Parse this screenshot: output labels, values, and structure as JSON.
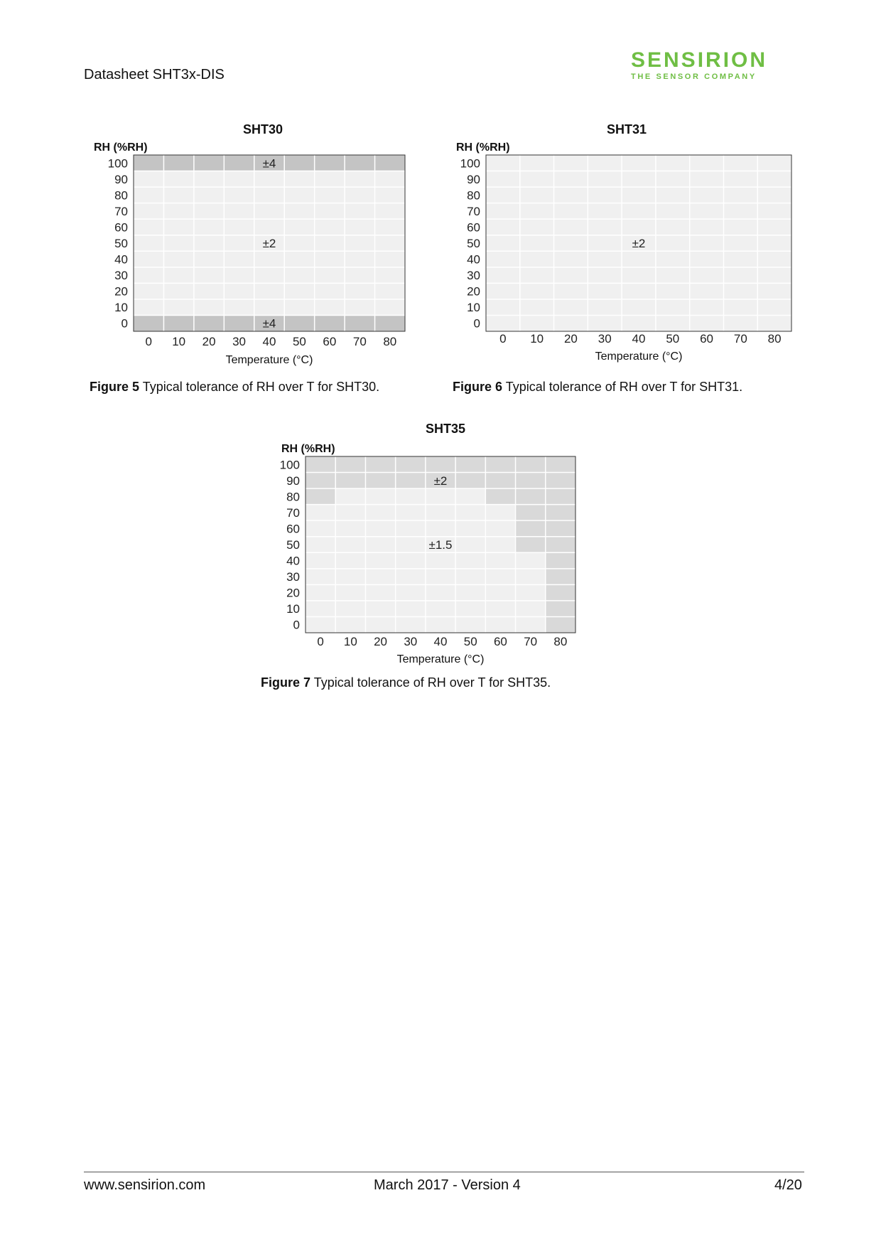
{
  "header": {
    "title": "Datasheet SHT3x-DIS",
    "logo_main": "SENSIRION",
    "logo_sub": "THE SENSOR COMPANY"
  },
  "colors": {
    "brand_green": "#6fbe44",
    "low_fill": "#f0f0f0",
    "mid_fill": "#d9d9d9",
    "high_fill": "#c4c4c4",
    "grid": "#ffffff"
  },
  "figures": [
    {
      "number": "Figure 5",
      "caption": " Typical tolerance of RH over T for SHT30."
    },
    {
      "number": "Figure 6",
      "caption": " Typical tolerance of RH over T for SHT31."
    },
    {
      "number": "Figure 7",
      "caption": " Typical tolerance of RH over T for SHT35."
    }
  ],
  "chart_data": [
    {
      "type": "heatmap",
      "title": "SHT30",
      "ylabel": "RH (%RH)",
      "xlabel": "Temperature (°C)",
      "x_ticks": [
        0,
        10,
        20,
        30,
        40,
        50,
        60,
        70,
        80
      ],
      "y_ticks": [
        100,
        90,
        80,
        70,
        60,
        50,
        40,
        30,
        20,
        10,
        0
      ],
      "xlim": [
        -5,
        85
      ],
      "ylim": [
        -5,
        105
      ],
      "regions": [
        {
          "label": "±2",
          "value": 2,
          "shade": "low",
          "x": [
            -5,
            85
          ],
          "y": [
            5,
            95
          ]
        },
        {
          "label": "±4",
          "value": 4,
          "shade": "high",
          "x": [
            -5,
            85
          ],
          "y": [
            95,
            105
          ]
        },
        {
          "label": "±4",
          "value": 4,
          "shade": "high",
          "x": [
            -5,
            85
          ],
          "y": [
            -5,
            5
          ]
        }
      ],
      "labels": [
        {
          "text": "±4",
          "x": 40,
          "y": 100
        },
        {
          "text": "±2",
          "x": 40,
          "y": 50
        },
        {
          "text": "±4",
          "x": 40,
          "y": 0
        }
      ]
    },
    {
      "type": "heatmap",
      "title": "SHT31",
      "ylabel": "RH (%RH)",
      "xlabel": "Temperature (°C)",
      "x_ticks": [
        0,
        10,
        20,
        30,
        40,
        50,
        60,
        70,
        80
      ],
      "y_ticks": [
        100,
        90,
        80,
        70,
        60,
        50,
        40,
        30,
        20,
        10,
        0
      ],
      "xlim": [
        -5,
        85
      ],
      "ylim": [
        -5,
        105
      ],
      "regions": [
        {
          "label": "±2",
          "value": 2,
          "shade": "low",
          "x": [
            -5,
            85
          ],
          "y": [
            -5,
            105
          ]
        }
      ],
      "labels": [
        {
          "text": "±2",
          "x": 40,
          "y": 50
        }
      ]
    },
    {
      "type": "heatmap",
      "title": "SHT35",
      "ylabel": "RH (%RH)",
      "xlabel": "Temperature (°C)",
      "x_ticks": [
        0,
        10,
        20,
        30,
        40,
        50,
        60,
        70,
        80
      ],
      "y_ticks": [
        100,
        90,
        80,
        70,
        60,
        50,
        40,
        30,
        20,
        10,
        0
      ],
      "xlim": [
        -5,
        85
      ],
      "ylim": [
        -5,
        105
      ],
      "regions": [
        {
          "label": "±1.5",
          "value": 1.5,
          "shade": "low",
          "x": [
            -5,
            85
          ],
          "y": [
            -5,
            105
          ]
        },
        {
          "label": "±2",
          "value": 2,
          "shade": "mid",
          "x": [
            -5,
            85
          ],
          "y": [
            85,
            105
          ]
        },
        {
          "label": "±2",
          "value": 2,
          "shade": "mid",
          "x": [
            -5,
            5
          ],
          "y": [
            75,
            85
          ]
        },
        {
          "label": "±2",
          "value": 2,
          "shade": "mid",
          "x": [
            55,
            85
          ],
          "y": [
            75,
            85
          ]
        },
        {
          "label": "±2",
          "value": 2,
          "shade": "mid",
          "x": [
            65,
            85
          ],
          "y": [
            45,
            75
          ]
        },
        {
          "label": "±2",
          "value": 2,
          "shade": "mid",
          "x": [
            75,
            85
          ],
          "y": [
            -5,
            45
          ]
        }
      ],
      "labels": [
        {
          "text": "±2",
          "x": 40,
          "y": 90
        },
        {
          "text": "±1.5",
          "x": 40,
          "y": 50
        }
      ]
    }
  ],
  "footer": {
    "left": "www.sensirion.com",
    "center": "March 2017 - Version 4",
    "right": "4/20"
  }
}
